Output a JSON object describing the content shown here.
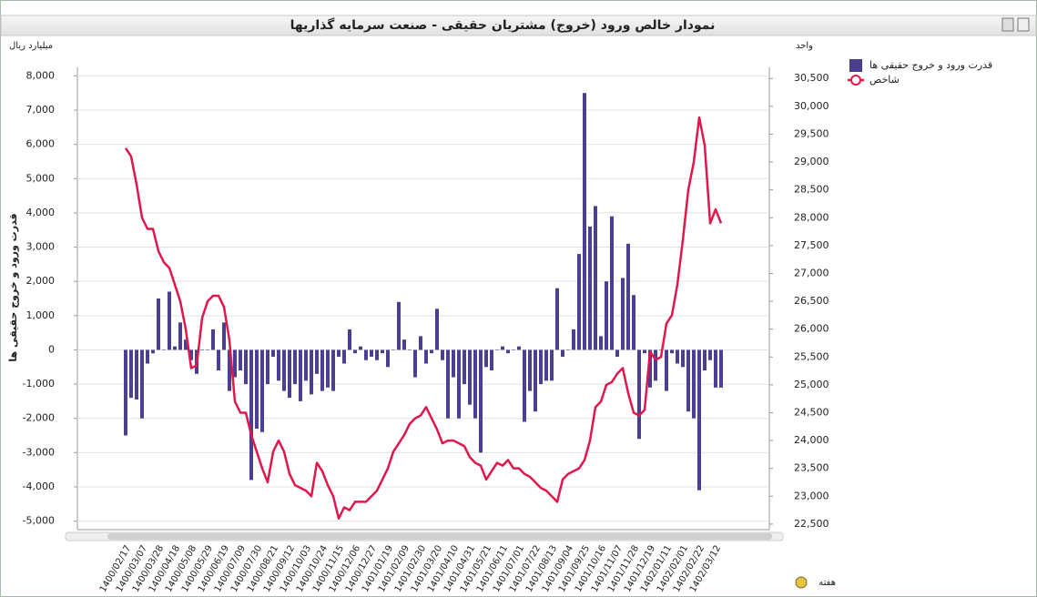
{
  "chart_data": {
    "type": "bar",
    "title": "نمودار خالص ورود (خروج) مشتریان حقیقی - صنعت سرمایه گذاریها",
    "y_axis_label": "میلیارد ریال",
    "y2_axis_label": "واحد",
    "y_title": "قدرت ورود و خروج حقیقی ها",
    "x_axis_label": "هفته",
    "legend": "right",
    "grid": true,
    "categories": [
      "1400/02/17",
      null,
      null,
      "1400/03/07",
      null,
      null,
      "1400/03/28",
      null,
      null,
      "1400/04/18",
      null,
      null,
      "1400/05/08",
      null,
      null,
      "1400/05/29",
      null,
      null,
      "1400/06/19",
      null,
      null,
      "1400/07/09",
      null,
      null,
      "1400/07/30",
      null,
      null,
      "1400/08/21",
      null,
      null,
      "1400/09/12",
      null,
      null,
      "1400/10/03",
      null,
      null,
      "1400/10/24",
      null,
      null,
      "1400/11/15",
      null,
      null,
      "1400/12/06",
      null,
      null,
      "1400/12/27",
      null,
      null,
      "1401/01/19",
      null,
      null,
      "1401/02/09",
      null,
      null,
      "1401/02/30",
      null,
      null,
      "1401/03/20",
      null,
      null,
      "1401/04/10",
      null,
      null,
      "1401/04/31",
      null,
      null,
      "1401/05/21",
      null,
      null,
      "1401/06/11",
      null,
      null,
      "1401/07/01",
      null,
      null,
      "1401/07/22",
      null,
      null,
      "1401/08/13",
      null,
      null,
      "1401/09/04",
      null,
      null,
      "1401/09/25",
      null,
      null,
      "1401/10/16",
      null,
      null,
      "1401/11/07",
      null,
      null,
      "1401/11/28",
      null,
      null,
      "1401/12/19",
      null,
      null,
      "1402/01/11",
      null,
      null,
      "1402/02/01",
      null,
      null,
      "1402/02/22",
      null,
      null,
      "1402/03/12",
      null
    ],
    "series": [
      {
        "name": "قدرت ورود و خروج حقیقی ها",
        "type": "bar",
        "color": "#4b3f8e",
        "values": [
          -2500,
          -1400,
          -1450,
          -2000,
          -400,
          -100,
          1500,
          0,
          1700,
          100,
          800,
          300,
          -300,
          -700,
          0,
          0,
          600,
          -600,
          800,
          -1200,
          -800,
          -600,
          -1000,
          -3800,
          -2300,
          -2400,
          -1000,
          -200,
          -900,
          -1200,
          -1400,
          -1000,
          -1500,
          -900,
          -1300,
          -700,
          -1200,
          -1100,
          -1200,
          -200,
          -400,
          600,
          -100,
          100,
          -300,
          -200,
          -300,
          -100,
          -500,
          0,
          1400,
          300,
          0,
          -800,
          400,
          -400,
          -100,
          1200,
          -300,
          -2000,
          -800,
          -2000,
          -1000,
          -1600,
          -2000,
          -3000,
          -500,
          -600,
          0,
          100,
          -100,
          0,
          100,
          -2100,
          -1200,
          -1800,
          -1000,
          -900,
          -900,
          1800,
          -200,
          0,
          600,
          2800,
          7500,
          3600,
          4200,
          400,
          2000,
          3900,
          -200,
          2100,
          3100,
          1600,
          -2600,
          -100,
          -1100,
          -900,
          0,
          -1200,
          -100,
          -400,
          -500,
          -1800,
          -2000,
          -4100,
          -600,
          -300,
          -1100,
          -1100
        ]
      },
      {
        "name": "شاخص",
        "type": "line",
        "axis": "y2",
        "color": "#e0174a",
        "values": [
          29250,
          29100,
          28600,
          28000,
          27800,
          27800,
          27400,
          27200,
          27100,
          26800,
          26500,
          26000,
          25300,
          25350,
          26200,
          26500,
          26600,
          26600,
          26400,
          25800,
          24700,
          24500,
          24500,
          24100,
          23800,
          23500,
          23250,
          23800,
          24000,
          23800,
          23400,
          23200,
          23150,
          23100,
          23000,
          23600,
          23450,
          23200,
          23000,
          22600,
          22800,
          22750,
          22900,
          22900,
          22900,
          23000,
          23100,
          23300,
          23500,
          23800,
          23950,
          24100,
          24300,
          24400,
          24450,
          24600,
          24400,
          24200,
          23950,
          24000,
          24000,
          23950,
          23900,
          23700,
          23600,
          23550,
          23300,
          23450,
          23600,
          23550,
          23650,
          23500,
          23500,
          23400,
          23350,
          23250,
          23150,
          23100,
          23000,
          22900,
          23300,
          23400,
          23450,
          23500,
          23650,
          24000,
          24600,
          24700,
          25000,
          25050,
          25200,
          25300,
          24850,
          24500,
          24450,
          24550,
          25600,
          25450,
          25500,
          26100,
          26250,
          26800,
          27600,
          28500,
          29000,
          29800,
          29300,
          27900,
          28150,
          27900
        ]
      }
    ],
    "ylim": [
      -5250,
      8250
    ],
    "yticks": [
      {
        "value": -5000,
        "label": "-5,000"
      },
      {
        "value": -4000,
        "label": "-4,000"
      },
      {
        "value": -3000,
        "label": "-3,000"
      },
      {
        "value": -2000,
        "label": "-2,000"
      },
      {
        "value": -1000,
        "label": "-1,000"
      },
      0,
      {
        "value": 1000,
        "label": "1,000"
      },
      {
        "value": 2000,
        "label": "2,000"
      },
      {
        "value": 3000,
        "label": "3,000"
      },
      {
        "value": 4000,
        "label": "4,000"
      },
      {
        "value": 5000,
        "label": "5,000"
      },
      {
        "value": 6000,
        "label": "6,000"
      },
      {
        "value": 7000,
        "label": "7,000"
      },
      {
        "value": 8000,
        "label": "8,000"
      }
    ],
    "y2lim": [
      22400,
      30700
    ],
    "y2ticks": [
      {
        "value": 22500,
        "label": "22,500"
      },
      {
        "value": 23000,
        "label": "23,000"
      },
      {
        "value": 23500,
        "label": "23,500"
      },
      {
        "value": 24000,
        "label": "24,000"
      },
      {
        "value": 24500,
        "label": "24,500"
      },
      {
        "value": 25000,
        "label": "25,000"
      },
      {
        "value": 25500,
        "label": "25,500"
      },
      {
        "value": 26000,
        "label": "26,000"
      },
      {
        "value": 26500,
        "label": "26,500"
      },
      {
        "value": 27000,
        "label": "27,000"
      },
      {
        "value": 27500,
        "label": "27,500"
      },
      {
        "value": 28000,
        "label": "28,000"
      },
      {
        "value": 28500,
        "label": "28,500"
      },
      {
        "value": 29000,
        "label": "29,000"
      },
      {
        "value": 29500,
        "label": "29,500"
      },
      {
        "value": 30000,
        "label": "30,000"
      },
      {
        "value": 30500,
        "label": "30,500"
      }
    ]
  }
}
